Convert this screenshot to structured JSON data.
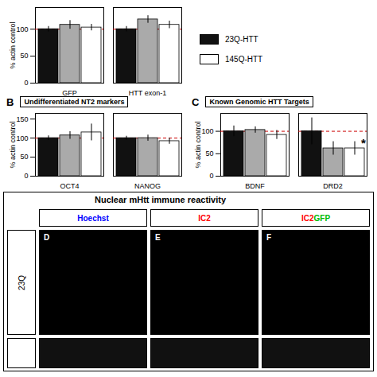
{
  "chart_data": [
    {
      "type": "bar",
      "categories": [
        "GFP",
        "HTT exon-1"
      ],
      "ylabel": "% actin control",
      "ylim": [
        0,
        140
      ],
      "yticks": [
        0,
        50,
        100
      ],
      "series": [
        {
          "name": "23Q-HTT",
          "color": "#111111",
          "values": [
            100,
            100
          ],
          "errors": [
            5,
            5
          ]
        },
        {
          "color": "#aaaaaa",
          "values": [
            108,
            118
          ],
          "errors": [
            8,
            7
          ]
        },
        {
          "name": "145Q-HTT",
          "color": "#ffffff",
          "values": [
            103,
            108
          ],
          "errors": [
            6,
            7
          ]
        }
      ],
      "reference_line": {
        "y": 100,
        "color": "#cc0000",
        "line_style": "dashed"
      },
      "legend": "top right"
    },
    {
      "type": "bar",
      "title": "Undifferentiated NT2 markers",
      "categories": [
        "OCT4",
        "NANOG"
      ],
      "ylabel": "% actin control",
      "ylim": [
        0,
        165
      ],
      "yticks": [
        0,
        50,
        100,
        150
      ],
      "series": [
        {
          "name": "23Q-HTT",
          "color": "#111111",
          "values": [
            100,
            100
          ],
          "errors": [
            6,
            5
          ]
        },
        {
          "color": "#aaaaaa",
          "values": [
            107,
            100
          ],
          "errors": [
            10,
            8
          ]
        },
        {
          "name": "145Q-HTT",
          "color": "#ffffff",
          "values": [
            115,
            92
          ],
          "errors": [
            22,
            8
          ]
        }
      ],
      "reference_line": {
        "y": 100,
        "color": "#cc0000",
        "line_style": "dashed"
      },
      "annotations": [
        {
          "text": "B"
        }
      ]
    },
    {
      "type": "bar",
      "title": "Known Genomic HTT Targets",
      "categories": [
        "BDNF",
        "DRD2"
      ],
      "ylabel": "% actin control",
      "ylim": [
        0,
        140
      ],
      "yticks": [
        0,
        50,
        100
      ],
      "series": [
        {
          "name": "23Q-HTT",
          "color": "#111111",
          "values": [
            100,
            100
          ],
          "errors": [
            12,
            30
          ]
        },
        {
          "color": "#aaaaaa",
          "values": [
            103,
            62
          ],
          "errors": [
            7,
            15
          ]
        },
        {
          "name": "145Q-HTT",
          "color": "#ffffff",
          "values": [
            92,
            62
          ],
          "errors": [
            10,
            15
          ]
        }
      ],
      "reference_line": {
        "y": 100,
        "color": "#cc0000",
        "line_style": "dashed"
      },
      "annotations": [
        {
          "text": "C"
        },
        {
          "text": "*",
          "x": "DRD2",
          "y": 65
        }
      ]
    },
    {
      "type": "image",
      "title": "Nuclear mHtt immune reactivity",
      "columns": [
        [
          {
            "text": "Hoechst",
            "color": "blue"
          }
        ],
        [
          {
            "text": "IC2",
            "color": "red"
          }
        ],
        [
          {
            "text": "IC2",
            "color": "red"
          },
          {
            "text": "GFP",
            "color": "#00bb00"
          }
        ]
      ],
      "rows": [
        "23Q",
        null
      ],
      "panels": [
        "D",
        "E",
        "F"
      ]
    }
  ]
}
